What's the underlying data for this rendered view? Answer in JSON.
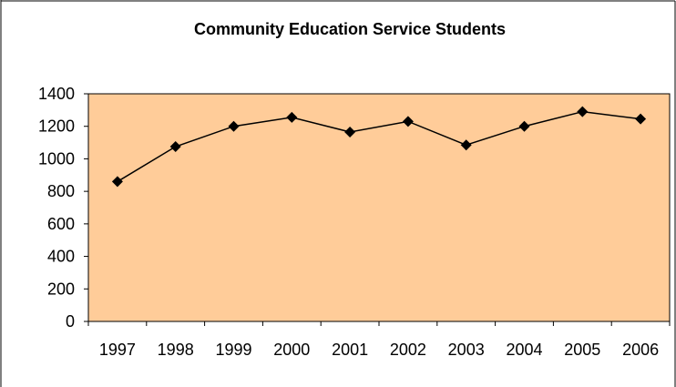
{
  "chart_data": {
    "type": "line",
    "title": "Community Education Service Students",
    "xlabel": "",
    "ylabel": "",
    "categories": [
      "1997",
      "1998",
      "1999",
      "2000",
      "2001",
      "2002",
      "2003",
      "2004",
      "2005",
      "2006"
    ],
    "series": [
      {
        "values": [
          860,
          1075,
          1200,
          1255,
          1165,
          1230,
          1085,
          1200,
          1290,
          1245
        ]
      }
    ],
    "ylim": [
      0,
      1400
    ],
    "yticks": [
      0,
      200,
      400,
      600,
      800,
      1000,
      1200,
      1400
    ],
    "grid": false,
    "legend": "none",
    "marker": "diamond",
    "colors": {
      "plot_background": "#FFCC99",
      "line": "#000000",
      "marker": "#000000",
      "frame": "#000000"
    }
  }
}
